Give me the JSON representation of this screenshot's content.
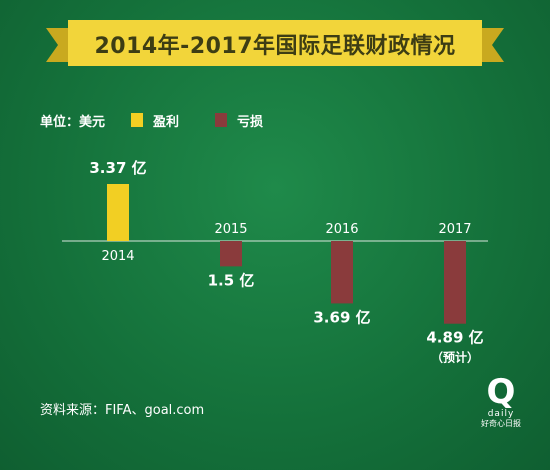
{
  "title": "2014年-2017年国际足联财政情况",
  "legend": {
    "unit": "单位：美元",
    "profit": "盈利",
    "loss": "亏损"
  },
  "colors": {
    "profit": "#f2cf23",
    "loss": "#8a3b3c",
    "banner": "#f2d53a",
    "banner_dark": "#c9a91f"
  },
  "chart_data": {
    "type": "bar",
    "categories": [
      "2014",
      "2015",
      "2016",
      "2017"
    ],
    "values": [
      3.37,
      -1.5,
      -3.69,
      -4.89
    ],
    "value_labels": [
      "3.37 亿",
      "1.5 亿",
      "3.69 亿",
      "4.89 亿"
    ],
    "notes": [
      "",
      "",
      "",
      "（预计）"
    ],
    "series": [
      {
        "name": "盈利"
      },
      {
        "name": "亏损"
      }
    ],
    "ylim": [
      -4.89,
      3.37
    ],
    "legend": "top-left",
    "grid": false
  },
  "source": "资料来源：FIFA、goal.com",
  "logo": {
    "mark": "Q",
    "word": "daily",
    "name": "好奇心日报"
  }
}
